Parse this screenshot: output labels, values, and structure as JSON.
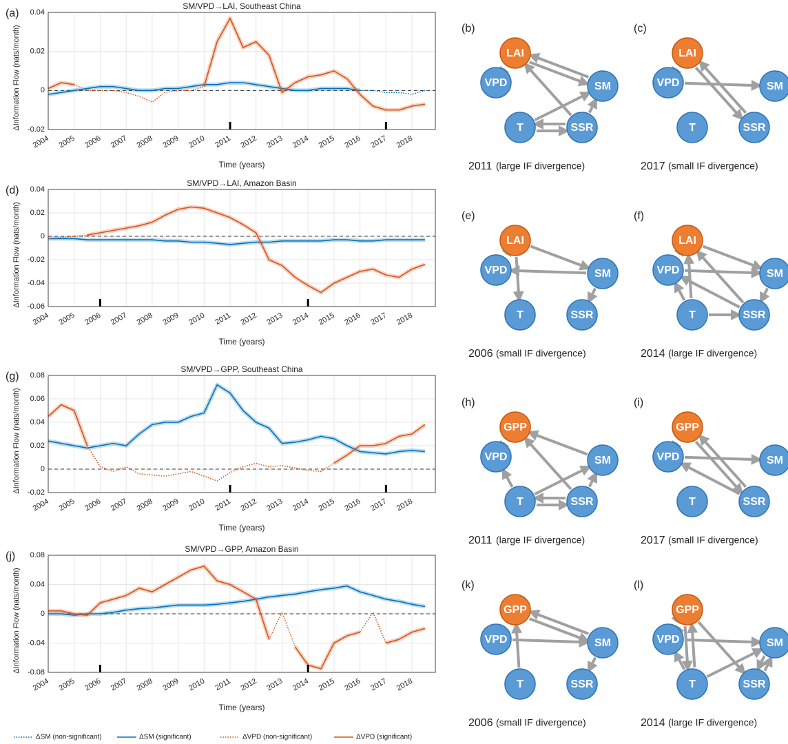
{
  "chart_data": [
    {
      "type": "line",
      "panel": "(a)",
      "title": "SM/VPD→LAI, Southeast China",
      "xlabel": "Time (years)",
      "ylabel": "ΔInformation Flow (nats/month)",
      "x": [
        2004,
        2004.5,
        2005,
        2005.5,
        2006,
        2006.5,
        2007,
        2007.5,
        2008,
        2008.5,
        2009,
        2009.5,
        2010,
        2010.5,
        2011,
        2011.5,
        2012,
        2012.5,
        2013,
        2013.5,
        2014,
        2014.5,
        2015,
        2015.5,
        2016,
        2016.5,
        2017,
        2017.5,
        2018,
        2018.5
      ],
      "xlim": [
        2004,
        2018.9
      ],
      "xticks": [
        2004,
        2005,
        2006,
        2007,
        2008,
        2009,
        2010,
        2011,
        2012,
        2013,
        2014,
        2015,
        2016,
        2017,
        2018
      ],
      "ylim": [
        -0.02,
        0.04
      ],
      "yticks": [
        -0.02,
        0,
        0.02,
        0.04
      ],
      "grid": true,
      "reference_line": 0,
      "highlight_x": [
        2011,
        2017
      ],
      "series": [
        {
          "name": "ΔSM (non-significant)",
          "color": "#0072bd",
          "style": "dotted",
          "values": [
            null,
            null,
            null,
            null,
            null,
            null,
            null,
            null,
            null,
            null,
            null,
            null,
            null,
            null,
            null,
            null,
            null,
            null,
            null,
            null,
            null,
            null,
            null,
            null,
            0,
            0,
            -0.001,
            -0.001,
            -0.002,
            0
          ]
        },
        {
          "name": "ΔSM (significant)",
          "color": "#0072bd",
          "style": "solid",
          "values": [
            -0.002,
            -0.001,
            0,
            0.001,
            0.002,
            0.002,
            0.001,
            0,
            0,
            0.001,
            0.001,
            0.002,
            0.003,
            0.003,
            0.004,
            0.004,
            0.003,
            0.002,
            0.001,
            0,
            0,
            0.001,
            0.001,
            0.001,
            0,
            null,
            null,
            null,
            null,
            null
          ]
        },
        {
          "name": "ΔVPD (non-significant)",
          "color": "#d95319",
          "style": "dotted",
          "values": [
            null,
            null,
            0.003,
            0,
            0,
            0,
            -0.001,
            -0.003,
            -0.006,
            -0.001,
            0,
            0,
            0.002,
            null,
            null,
            null,
            null,
            null,
            null,
            null,
            null,
            null,
            null,
            null,
            null,
            null,
            null,
            null,
            null,
            null
          ]
        },
        {
          "name": "ΔVPD (significant)",
          "color": "#d95319",
          "style": "solid",
          "values": [
            0.001,
            0.004,
            0.003,
            null,
            null,
            null,
            null,
            null,
            null,
            null,
            null,
            null,
            0.002,
            0.025,
            0.037,
            0.022,
            0.025,
            0.018,
            -0.001,
            0.004,
            0.007,
            0.008,
            0.01,
            0.006,
            -0.002,
            -0.008,
            -0.01,
            -0.01,
            -0.008,
            -0.007
          ]
        }
      ]
    },
    {
      "type": "line",
      "panel": "(d)",
      "title": "SM/VPD→LAI, Amazon Basin",
      "xlabel": "Time (years)",
      "ylabel": "ΔInformation Flow (nats/month)",
      "x": [
        2004,
        2004.5,
        2005,
        2005.5,
        2006,
        2006.5,
        2007,
        2007.5,
        2008,
        2008.5,
        2009,
        2009.5,
        2010,
        2010.5,
        2011,
        2011.5,
        2012,
        2012.5,
        2013,
        2013.5,
        2014,
        2014.5,
        2015,
        2015.5,
        2016,
        2016.5,
        2017,
        2017.5,
        2018,
        2018.5
      ],
      "xlim": [
        2004,
        2018.9
      ],
      "xticks": [
        2004,
        2005,
        2006,
        2007,
        2008,
        2009,
        2010,
        2011,
        2012,
        2013,
        2014,
        2015,
        2016,
        2017,
        2018
      ],
      "ylim": [
        -0.06,
        0.04
      ],
      "yticks": [
        -0.06,
        -0.04,
        -0.02,
        0,
        0.02,
        0.04
      ],
      "grid": true,
      "reference_line": 0,
      "highlight_x": [
        2006,
        2014
      ],
      "series": [
        {
          "name": "ΔSM (significant)",
          "color": "#0072bd",
          "style": "solid",
          "values": [
            -0.002,
            -0.002,
            -0.002,
            -0.003,
            -0.003,
            -0.003,
            -0.003,
            -0.003,
            -0.003,
            -0.004,
            -0.004,
            -0.005,
            -0.005,
            -0.006,
            -0.007,
            -0.006,
            -0.005,
            -0.005,
            -0.004,
            -0.004,
            -0.004,
            -0.004,
            -0.003,
            -0.003,
            -0.004,
            -0.004,
            -0.003,
            -0.003,
            -0.003,
            -0.003
          ]
        },
        {
          "name": "ΔVPD (non-significant)",
          "color": "#d95319",
          "style": "dotted",
          "values": [
            -0.002,
            -0.001,
            0,
            0.001,
            null,
            null,
            null,
            null,
            null,
            null,
            null,
            null,
            null,
            null,
            null,
            null,
            null,
            null,
            null,
            null,
            null,
            null,
            null,
            null,
            null,
            null,
            null,
            null,
            null,
            null
          ]
        },
        {
          "name": "ΔVPD (significant)",
          "color": "#d95319",
          "style": "solid",
          "values": [
            null,
            null,
            null,
            0.001,
            0.003,
            0.005,
            0.007,
            0.009,
            0.012,
            0.018,
            0.023,
            0.025,
            0.024,
            0.02,
            0.016,
            0.01,
            0.003,
            -0.02,
            -0.025,
            -0.035,
            -0.042,
            -0.048,
            -0.04,
            -0.035,
            -0.03,
            -0.028,
            -0.033,
            -0.035,
            -0.028,
            -0.024
          ]
        }
      ]
    },
    {
      "type": "line",
      "panel": "(g)",
      "title": "SM/VPD→GPP, Southeast China",
      "xlabel": "Time (years)",
      "ylabel": "ΔInformation Flow (nats/month)",
      "x": [
        2004,
        2004.5,
        2005,
        2005.5,
        2006,
        2006.5,
        2007,
        2007.5,
        2008,
        2008.5,
        2009,
        2009.5,
        2010,
        2010.5,
        2011,
        2011.5,
        2012,
        2012.5,
        2013,
        2013.5,
        2014,
        2014.5,
        2015,
        2015.5,
        2016,
        2016.5,
        2017,
        2017.5,
        2018,
        2018.5
      ],
      "xlim": [
        2004,
        2018.9
      ],
      "xticks": [
        2004,
        2005,
        2006,
        2007,
        2008,
        2009,
        2010,
        2011,
        2012,
        2013,
        2014,
        2015,
        2016,
        2017,
        2018
      ],
      "ylim": [
        -0.02,
        0.08
      ],
      "yticks": [
        -0.02,
        0,
        0.02,
        0.04,
        0.06,
        0.08
      ],
      "grid": true,
      "reference_line": 0,
      "highlight_x": [
        2011,
        2017
      ],
      "series": [
        {
          "name": "ΔSM (significant)",
          "color": "#0072bd",
          "style": "solid",
          "values": [
            0.024,
            0.022,
            0.02,
            0.018,
            0.02,
            0.022,
            0.02,
            0.03,
            0.038,
            0.04,
            0.04,
            0.045,
            0.048,
            0.072,
            0.065,
            0.05,
            0.04,
            0.035,
            0.022,
            0.023,
            0.025,
            0.028,
            0.026,
            0.02,
            0.015,
            0.014,
            0.013,
            0.015,
            0.016,
            0.015
          ]
        },
        {
          "name": "ΔVPD (non-significant)",
          "color": "#d95319",
          "style": "dotted",
          "values": [
            null,
            null,
            null,
            0.02,
            0.002,
            -0.002,
            0.002,
            -0.004,
            -0.005,
            -0.006,
            -0.004,
            -0.002,
            -0.006,
            -0.01,
            -0.003,
            0.002,
            0.005,
            0.002,
            0.003,
            0.001,
            -0.001,
            -0.002,
            0.005,
            null,
            null,
            null,
            null,
            null,
            null,
            null
          ]
        },
        {
          "name": "ΔVPD (significant)",
          "color": "#d95319",
          "style": "solid",
          "values": [
            0.045,
            0.055,
            0.05,
            0.02,
            null,
            null,
            null,
            null,
            null,
            null,
            null,
            null,
            null,
            null,
            null,
            null,
            null,
            null,
            null,
            null,
            null,
            null,
            0.005,
            0.012,
            0.02,
            0.02,
            0.022,
            0.028,
            0.03,
            0.038
          ]
        }
      ]
    },
    {
      "type": "line",
      "panel": "(j)",
      "title": "SM/VPD→GPP, Amazon Basin",
      "xlabel": "Time (years)",
      "ylabel": "ΔInformation Flow (nats/month)",
      "x": [
        2004,
        2004.5,
        2005,
        2005.5,
        2006,
        2006.5,
        2007,
        2007.5,
        2008,
        2008.5,
        2009,
        2009.5,
        2010,
        2010.5,
        2011,
        2011.5,
        2012,
        2012.5,
        2013,
        2013.5,
        2014,
        2014.5,
        2015,
        2015.5,
        2016,
        2016.5,
        2017,
        2017.5,
        2018,
        2018.5
      ],
      "xlim": [
        2004,
        2018.9
      ],
      "xticks": [
        2004,
        2005,
        2006,
        2007,
        2008,
        2009,
        2010,
        2011,
        2012,
        2013,
        2014,
        2015,
        2016,
        2017,
        2018
      ],
      "ylim": [
        -0.08,
        0.08
      ],
      "yticks": [
        -0.08,
        -0.04,
        0,
        0.04,
        0.08
      ],
      "grid": true,
      "reference_line": 0,
      "highlight_x": [
        2006,
        2014
      ],
      "series": [
        {
          "name": "ΔSM (significant)",
          "color": "#0072bd",
          "style": "solid",
          "values": [
            0,
            0,
            -0.002,
            0,
            0,
            0.002,
            0.005,
            0.007,
            0.008,
            0.01,
            0.012,
            0.012,
            0.012,
            0.013,
            0.015,
            0.017,
            0.02,
            0.023,
            0.025,
            0.027,
            0.03,
            0.033,
            0.035,
            0.038,
            0.03,
            0.025,
            0.02,
            0.017,
            0.013,
            0.01
          ]
        },
        {
          "name": "ΔVPD (non-significant)",
          "color": "#d95319",
          "style": "dotted",
          "values": [
            null,
            null,
            null,
            null,
            null,
            null,
            null,
            null,
            null,
            null,
            null,
            null,
            null,
            null,
            null,
            null,
            null,
            -0.035,
            0.002,
            -0.045,
            null,
            null,
            null,
            null,
            -0.025,
            0.002,
            -0.04,
            null,
            null,
            null
          ]
        },
        {
          "name": "ΔVPD (significant)",
          "color": "#d95319",
          "style": "solid",
          "values": [
            0.004,
            0.004,
            0,
            -0.002,
            0.015,
            0.02,
            0.025,
            0.035,
            0.03,
            0.04,
            0.05,
            0.06,
            0.065,
            0.045,
            0.04,
            0.03,
            0.02,
            -0.035,
            null,
            -0.045,
            -0.07,
            -0.075,
            -0.04,
            -0.03,
            -0.025,
            null,
            -0.04,
            -0.035,
            -0.025,
            -0.02
          ]
        }
      ]
    }
  ],
  "diagrams": [
    {
      "label": "(b)",
      "nodes": [
        "LAI",
        "VPD",
        "SM",
        "T",
        "SSR"
      ],
      "edges": [
        [
          1,
          0
        ],
        [
          2,
          0
        ],
        [
          0,
          2
        ],
        [
          4,
          0
        ],
        [
          4,
          2
        ],
        [
          3,
          2
        ],
        [
          4,
          3
        ],
        [
          3,
          4
        ]
      ],
      "year": "2011",
      "note": "(large IF divergence)"
    },
    {
      "label": "(c)",
      "nodes": [
        "LAI",
        "VPD",
        "SM",
        "T",
        "SSR"
      ],
      "edges": [
        [
          1,
          0
        ],
        [
          1,
          2
        ],
        [
          0,
          4
        ],
        [
          4,
          0
        ]
      ],
      "year": "2017",
      "note": "(small IF divergence)"
    },
    {
      "label": "(e)",
      "nodes": [
        "LAI",
        "VPD",
        "SM",
        "T",
        "SSR"
      ],
      "edges": [
        [
          0,
          1
        ],
        [
          0,
          2
        ],
        [
          0,
          3
        ],
        [
          2,
          1
        ],
        [
          2,
          4
        ]
      ],
      "year": "2006",
      "note": "(small IF divergence)"
    },
    {
      "label": "(f)",
      "nodes": [
        "LAI",
        "VPD",
        "SM",
        "T",
        "SSR"
      ],
      "edges": [
        [
          0,
          1
        ],
        [
          0,
          2
        ],
        [
          3,
          0
        ],
        [
          4,
          0
        ],
        [
          1,
          2
        ],
        [
          2,
          4
        ],
        [
          4,
          1
        ],
        [
          3,
          1
        ],
        [
          3,
          4
        ]
      ],
      "year": "2014",
      "note": "(large IF divergence)"
    },
    {
      "label": "(h)",
      "nodes": [
        "GPP",
        "VPD",
        "SM",
        "T",
        "SSR"
      ],
      "edges": [
        [
          1,
          0
        ],
        [
          2,
          0
        ],
        [
          4,
          0
        ],
        [
          3,
          1
        ],
        [
          3,
          2
        ],
        [
          4,
          2
        ],
        [
          4,
          3
        ],
        [
          3,
          4
        ]
      ],
      "year": "2011",
      "note": "(large IF divergence)"
    },
    {
      "label": "(i)",
      "nodes": [
        "GPP",
        "VPD",
        "SM",
        "T",
        "SSR"
      ],
      "edges": [
        [
          1,
          0
        ],
        [
          1,
          2
        ],
        [
          0,
          4
        ],
        [
          4,
          0
        ],
        [
          4,
          1
        ]
      ],
      "year": "2017",
      "note": "(small IF divergence)"
    },
    {
      "label": "(k)",
      "nodes": [
        "GPP",
        "VPD",
        "SM",
        "T",
        "SSR"
      ],
      "edges": [
        [
          3,
          0
        ],
        [
          0,
          2
        ],
        [
          2,
          0
        ],
        [
          1,
          2
        ],
        [
          2,
          4
        ]
      ],
      "year": "2006",
      "note": "(small IF divergence)"
    },
    {
      "label": "(l)",
      "nodes": [
        "GPP",
        "VPD",
        "SM",
        "T",
        "SSR"
      ],
      "edges": [
        [
          0,
          1
        ],
        [
          1,
          0
        ],
        [
          3,
          0
        ],
        [
          0,
          3
        ],
        [
          0,
          4
        ],
        [
          1,
          2
        ],
        [
          3,
          2
        ],
        [
          3,
          1
        ],
        [
          2,
          4
        ],
        [
          4,
          2
        ]
      ],
      "year": "2014",
      "note": "(large IF divergence)"
    }
  ]
}
